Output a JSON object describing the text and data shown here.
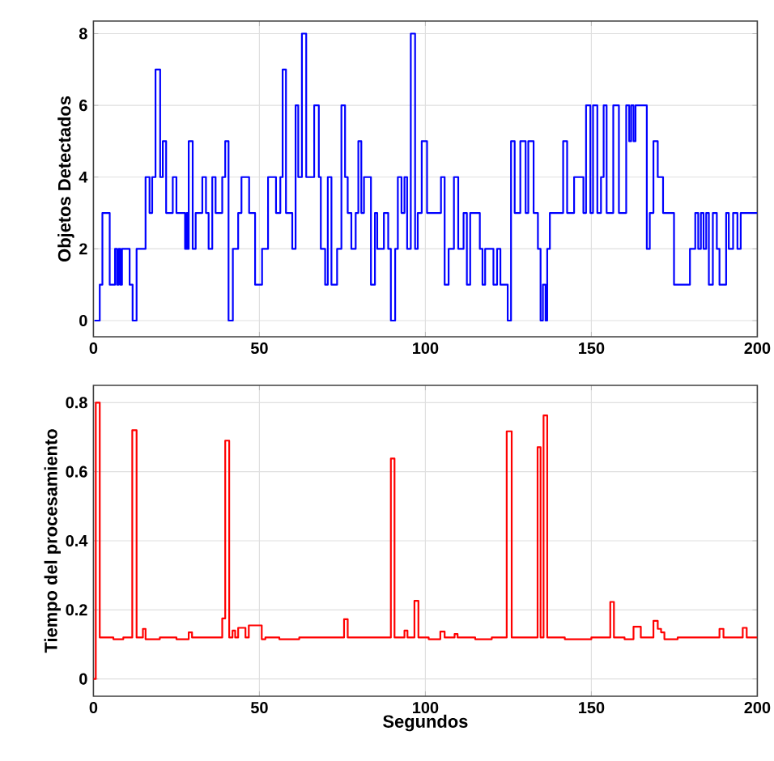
{
  "chart_data": [
    {
      "type": "step",
      "ylabel": "Objetos Detectados",
      "color": "#0000ff",
      "grid": true,
      "xlim": [
        0,
        200
      ],
      "ylim": [
        -0.45,
        8.35
      ],
      "xticks": [
        0,
        50,
        100,
        150,
        200
      ],
      "yticks": [
        0,
        2,
        4,
        6,
        8
      ],
      "x": [
        0.3,
        1.9,
        2.7,
        4.9,
        6.5,
        7.1,
        7.6,
        8.1,
        8.6,
        10.9,
        11.8,
        13.0,
        15.7,
        16.9,
        17.7,
        18.7,
        20.1,
        20.9,
        21.9,
        23.9,
        25.0,
        27.6,
        28.1,
        28.4,
        28.7,
        29.9,
        30.8,
        32.8,
        33.9,
        34.7,
        35.8,
        36.8,
        38.8,
        39.7,
        40.7,
        42.0,
        43.6,
        44.6,
        46.9,
        48.7,
        50.8,
        52.6,
        55.0,
        56.3,
        57.0,
        58.0,
        59.9,
        60.9,
        61.7,
        62.8,
        64.1,
        66.5,
        67.9,
        68.5,
        69.8,
        70.6,
        71.7,
        73.4,
        74.7,
        75.8,
        76.6,
        77.7,
        79.0,
        79.8,
        80.7,
        81.5,
        83.6,
        84.8,
        85.5,
        87.5,
        88.8,
        89.6,
        90.9,
        91.7,
        92.8,
        93.7,
        94.5,
        95.6,
        96.9,
        97.7,
        98.9,
        100.5,
        104.7,
        105.8,
        107.0,
        108.6,
        109.9,
        111.5,
        112.5,
        113.5,
        116.4,
        117.2,
        118.0,
        120.5,
        121.6,
        122.6,
        124.8,
        125.8,
        126.9,
        128.6,
        130.2,
        131.0,
        132.6,
        133.9,
        134.7,
        135.4,
        136.2,
        136.7,
        137.5,
        141.5,
        142.7,
        144.8,
        147.6,
        148.4,
        149.7,
        150.5,
        151.8,
        152.9,
        153.7,
        154.6,
        156.6,
        158.3,
        160.5,
        161.4,
        162.0,
        162.7,
        163.3,
        166.7,
        167.6,
        168.7,
        170.0,
        171.6,
        174.9,
        179.7,
        181.3,
        182.2,
        183.0,
        183.8,
        184.6,
        185.4,
        186.6,
        187.8,
        188.6,
        190.6,
        191.4,
        192.7,
        194.0,
        195.0,
        200
      ],
      "values": [
        0,
        1,
        3,
        1,
        2,
        1,
        2,
        1,
        2,
        1,
        0,
        2,
        4,
        3,
        4,
        7,
        4,
        5,
        3,
        4,
        3,
        2,
        3,
        2,
        5,
        2,
        3,
        4,
        3,
        2,
        4,
        3,
        4,
        5,
        0,
        2,
        3,
        4,
        3,
        1,
        2,
        4,
        3,
        4,
        7,
        3,
        2,
        6,
        4,
        8,
        4,
        6,
        4,
        2,
        1,
        4,
        1,
        2,
        6,
        4,
        3,
        2,
        3,
        5,
        3,
        4,
        1,
        3,
        2,
        3,
        2,
        0,
        2,
        4,
        3,
        4,
        2,
        8,
        2,
        3,
        5,
        3,
        4,
        1,
        2,
        4,
        2,
        3,
        1,
        3,
        2,
        1,
        2,
        1,
        2,
        1,
        0,
        5,
        3,
        5,
        3,
        5,
        3,
        2,
        0,
        1,
        0,
        2,
        3,
        5,
        3,
        4,
        3,
        6,
        3,
        6,
        3,
        4,
        6,
        3,
        6,
        3,
        6,
        5,
        6,
        5,
        6,
        2,
        3,
        5,
        4,
        3,
        1,
        2,
        3,
        2,
        3,
        2,
        3,
        1,
        3,
        2,
        1,
        3,
        2,
        3,
        2,
        3,
        3
      ]
    },
    {
      "type": "step",
      "ylabel": "Tiempo del procesamiento",
      "xlabel": "Segundos",
      "color": "#ff0000",
      "grid": true,
      "xlim": [
        0,
        200
      ],
      "ylim": [
        -0.05,
        0.85
      ],
      "xticks": [
        0,
        50,
        100,
        150,
        200
      ],
      "yticks": [
        0,
        0.2,
        0.4,
        0.6,
        0.8
      ],
      "x": [
        0,
        0.7,
        1.9,
        6,
        9,
        11.7,
        13.0,
        14.9,
        15.7,
        20,
        25,
        28.7,
        29.7,
        34,
        38.8,
        39.7,
        40.9,
        41.9,
        42.7,
        43.6,
        45.8,
        46.8,
        50.7,
        51.8,
        56,
        62,
        70,
        75.5,
        76.6,
        82,
        89.6,
        90.7,
        93.7,
        94.6,
        96.7,
        97.9,
        101,
        104.5,
        105.8,
        108.8,
        109.7,
        115,
        120,
        124.5,
        126,
        130,
        133.8,
        134.7,
        135.6,
        136.7,
        142,
        150,
        155.7,
        156.8,
        160,
        162.7,
        164.9,
        168.7,
        170,
        171,
        172,
        176,
        182,
        188.6,
        189.8,
        193,
        195.6,
        196.8,
        200
      ],
      "values": [
        0,
        0.8,
        0.12,
        0.115,
        0.12,
        0.72,
        0.12,
        0.145,
        0.115,
        0.12,
        0.115,
        0.135,
        0.12,
        0.12,
        0.175,
        0.69,
        0.12,
        0.14,
        0.12,
        0.148,
        0.12,
        0.155,
        0.115,
        0.12,
        0.115,
        0.12,
        0.12,
        0.173,
        0.12,
        0.12,
        0.638,
        0.12,
        0.14,
        0.12,
        0.226,
        0.12,
        0.115,
        0.137,
        0.12,
        0.13,
        0.12,
        0.115,
        0.12,
        0.717,
        0.12,
        0.12,
        0.671,
        0.12,
        0.763,
        0.12,
        0.115,
        0.12,
        0.223,
        0.12,
        0.115,
        0.151,
        0.12,
        0.168,
        0.145,
        0.135,
        0.115,
        0.12,
        0.12,
        0.145,
        0.12,
        0.12,
        0.148,
        0.12,
        0.12
      ]
    }
  ]
}
